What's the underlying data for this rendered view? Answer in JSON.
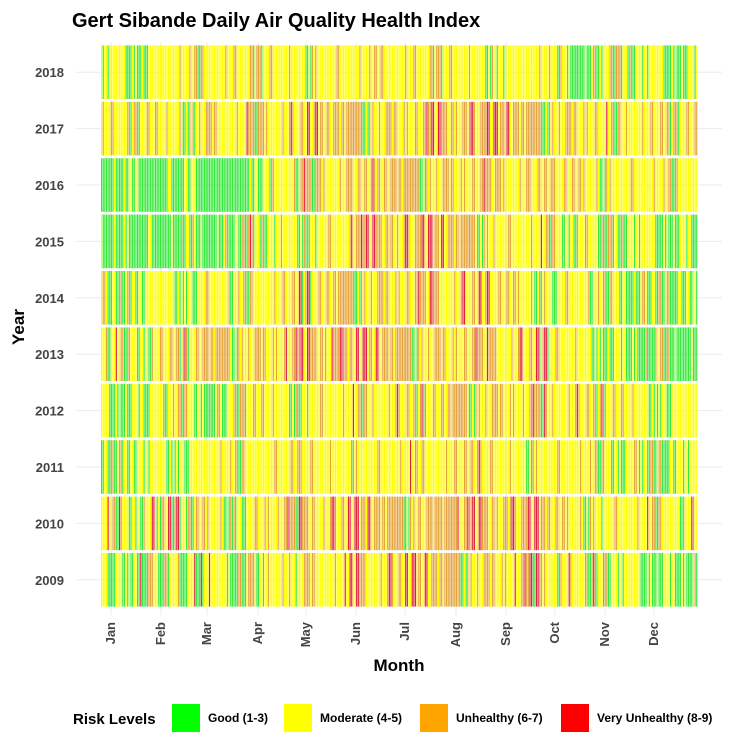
{
  "chart_data": {
    "type": "heatmap",
    "title": "Gert Sibande Daily Air Quality Health Index",
    "xlabel": "Month",
    "ylabel": "Year",
    "x_ticks": [
      "Jan",
      "Feb",
      "Mar",
      "Apr",
      "May",
      "Jun",
      "Jul",
      "Aug",
      "Sep",
      "Oct",
      "Nov",
      "Dec"
    ],
    "years": [
      "2009",
      "2010",
      "2011",
      "2012",
      "2013",
      "2014",
      "2015",
      "2016",
      "2017",
      "2018"
    ],
    "legend": {
      "title": "Risk Levels",
      "placement": "bottom",
      "levels": [
        {
          "label": "Good (1-3)",
          "color": "#00ff00"
        },
        {
          "label": "Moderate (4-5)",
          "color": "#ffff00"
        },
        {
          "label": "Unhealthy (6-7)",
          "color": "#ffa500"
        },
        {
          "label": "Very Unhealthy (8-9)",
          "color": "#ff0000"
        }
      ]
    },
    "bar_colors": [
      "#36e83c",
      "#ffff00",
      "#e6a33a",
      "#e0203c"
    ],
    "daily_category_profile": {
      "2009": [
        [
          0,
          1,
          0.55,
          0.3,
          0.1,
          0.05
        ],
        [
          1,
          2,
          0.5,
          0.35,
          0.12,
          0.03
        ],
        [
          2,
          3,
          0.4,
          0.4,
          0.17,
          0.03
        ],
        [
          3,
          4,
          0.25,
          0.5,
          0.22,
          0.03
        ],
        [
          4,
          5,
          0.12,
          0.5,
          0.33,
          0.05
        ],
        [
          5,
          6,
          0.05,
          0.45,
          0.4,
          0.1
        ],
        [
          6,
          7,
          0.05,
          0.45,
          0.4,
          0.1
        ],
        [
          7,
          8,
          0.05,
          0.45,
          0.42,
          0.08
        ],
        [
          8,
          9,
          0.08,
          0.45,
          0.37,
          0.1
        ],
        [
          9,
          10,
          0.25,
          0.5,
          0.22,
          0.03
        ],
        [
          10,
          11,
          0.4,
          0.45,
          0.13,
          0.02
        ],
        [
          11,
          12,
          0.5,
          0.4,
          0.08,
          0.02
        ]
      ],
      "2010": [
        [
          0,
          1,
          0.3,
          0.4,
          0.25,
          0.05
        ],
        [
          1,
          2,
          0.35,
          0.35,
          0.25,
          0.05
        ],
        [
          2,
          3,
          0.3,
          0.35,
          0.3,
          0.05
        ],
        [
          3,
          4,
          0.15,
          0.4,
          0.38,
          0.07
        ],
        [
          4,
          5,
          0.05,
          0.4,
          0.45,
          0.1
        ],
        [
          5,
          6,
          0.05,
          0.35,
          0.48,
          0.12
        ],
        [
          6,
          7,
          0.03,
          0.35,
          0.5,
          0.12
        ],
        [
          7,
          8,
          0.03,
          0.35,
          0.45,
          0.17
        ],
        [
          8,
          9,
          0.03,
          0.35,
          0.45,
          0.17
        ],
        [
          9,
          10,
          0.1,
          0.55,
          0.3,
          0.05
        ],
        [
          10,
          11,
          0.15,
          0.55,
          0.27,
          0.03
        ],
        [
          11,
          12,
          0.2,
          0.55,
          0.22,
          0.03
        ]
      ],
      "2011": [
        [
          0,
          1,
          0.45,
          0.5,
          0.05,
          0
        ],
        [
          1,
          2,
          0.3,
          0.6,
          0.1,
          0
        ],
        [
          2,
          3,
          0.2,
          0.65,
          0.15,
          0
        ],
        [
          3,
          4,
          0.05,
          0.8,
          0.15,
          0
        ],
        [
          4,
          5,
          0.02,
          0.8,
          0.18,
          0
        ],
        [
          5,
          6,
          0.02,
          0.75,
          0.23,
          0
        ],
        [
          6,
          7,
          0.02,
          0.72,
          0.25,
          0.01
        ],
        [
          7,
          8,
          0.02,
          0.7,
          0.27,
          0.01
        ],
        [
          8,
          9,
          0.05,
          0.72,
          0.22,
          0.01
        ],
        [
          9,
          10,
          0.12,
          0.7,
          0.18,
          0
        ],
        [
          10,
          11,
          0.35,
          0.55,
          0.1,
          0
        ],
        [
          11,
          12,
          0.55,
          0.4,
          0.05,
          0
        ]
      ],
      "2012": [
        [
          0,
          1,
          0.45,
          0.45,
          0.1,
          0
        ],
        [
          1,
          2,
          0.3,
          0.5,
          0.2,
          0
        ],
        [
          2,
          3,
          0.4,
          0.4,
          0.2,
          0
        ],
        [
          3,
          4,
          0.3,
          0.45,
          0.25,
          0
        ],
        [
          4,
          5,
          0.2,
          0.45,
          0.33,
          0.02
        ],
        [
          5,
          6,
          0.12,
          0.5,
          0.35,
          0.03
        ],
        [
          6,
          7,
          0.1,
          0.5,
          0.37,
          0.03
        ],
        [
          7,
          8,
          0.05,
          0.5,
          0.4,
          0.05
        ],
        [
          8,
          9,
          0.08,
          0.45,
          0.4,
          0.07
        ],
        [
          9,
          10,
          0.1,
          0.55,
          0.32,
          0.03
        ],
        [
          10,
          11,
          0.2,
          0.55,
          0.23,
          0.02
        ],
        [
          11,
          12,
          0.3,
          0.55,
          0.15,
          0
        ]
      ],
      "2013": [
        [
          0,
          1,
          0.3,
          0.5,
          0.18,
          0.02
        ],
        [
          1,
          2,
          0.2,
          0.5,
          0.28,
          0.02
        ],
        [
          2,
          3,
          0.1,
          0.45,
          0.38,
          0.07
        ],
        [
          3,
          4,
          0.05,
          0.35,
          0.45,
          0.15
        ],
        [
          4,
          5,
          0.02,
          0.3,
          0.48,
          0.2
        ],
        [
          5,
          6,
          0.05,
          0.4,
          0.45,
          0.1
        ],
        [
          6,
          7,
          0.05,
          0.45,
          0.42,
          0.08
        ],
        [
          7,
          8,
          0.03,
          0.45,
          0.45,
          0.07
        ],
        [
          8,
          9,
          0.08,
          0.5,
          0.37,
          0.05
        ],
        [
          9,
          10,
          0.3,
          0.5,
          0.18,
          0.02
        ],
        [
          10,
          11,
          0.55,
          0.35,
          0.1,
          0
        ],
        [
          11,
          12,
          0.6,
          0.3,
          0.1,
          0
        ]
      ],
      "2014": [
        [
          0,
          1,
          0.45,
          0.5,
          0.05,
          0
        ],
        [
          1,
          2,
          0.3,
          0.55,
          0.15,
          0
        ],
        [
          2,
          3,
          0.25,
          0.55,
          0.2,
          0
        ],
        [
          3,
          4,
          0.15,
          0.55,
          0.28,
          0.02
        ],
        [
          4,
          5,
          0.1,
          0.5,
          0.35,
          0.05
        ],
        [
          5,
          6,
          0.05,
          0.45,
          0.42,
          0.08
        ],
        [
          6,
          7,
          0.05,
          0.45,
          0.42,
          0.08
        ],
        [
          7,
          8,
          0.05,
          0.5,
          0.4,
          0.05
        ],
        [
          8,
          9,
          0.1,
          0.55,
          0.32,
          0.03
        ],
        [
          9,
          10,
          0.25,
          0.55,
          0.18,
          0.02
        ],
        [
          10,
          11,
          0.45,
          0.45,
          0.1,
          0
        ],
        [
          11,
          12,
          0.6,
          0.35,
          0.05,
          0
        ]
      ],
      "2015": [
        [
          0,
          1,
          0.65,
          0.3,
          0.05,
          0
        ],
        [
          1,
          2,
          0.65,
          0.3,
          0.05,
          0
        ],
        [
          2,
          3,
          0.6,
          0.3,
          0.1,
          0
        ],
        [
          3,
          4,
          0.35,
          0.45,
          0.18,
          0.02
        ],
        [
          4,
          5,
          0.2,
          0.45,
          0.32,
          0.03
        ],
        [
          5,
          6,
          0.05,
          0.25,
          0.4,
          0.3
        ],
        [
          6,
          7,
          0.05,
          0.35,
          0.45,
          0.15
        ],
        [
          7,
          8,
          0.08,
          0.45,
          0.4,
          0.07
        ],
        [
          8,
          9,
          0.15,
          0.5,
          0.32,
          0.03
        ],
        [
          9,
          10,
          0.3,
          0.5,
          0.2,
          0
        ],
        [
          10,
          11,
          0.5,
          0.4,
          0.1,
          0
        ],
        [
          11,
          12,
          0.55,
          0.4,
          0.05,
          0
        ]
      ],
      "2016": [
        [
          0,
          1,
          0.9,
          0.1,
          0,
          0
        ],
        [
          1,
          2,
          0.92,
          0.08,
          0,
          0
        ],
        [
          2,
          3,
          0.92,
          0.08,
          0,
          0
        ],
        [
          3,
          4,
          0.35,
          0.45,
          0.2,
          0
        ],
        [
          4,
          5,
          0.08,
          0.45,
          0.45,
          0.02
        ],
        [
          5,
          6,
          0.03,
          0.42,
          0.53,
          0.02
        ],
        [
          6,
          7,
          0.03,
          0.42,
          0.53,
          0.02
        ],
        [
          7,
          8,
          0.05,
          0.45,
          0.48,
          0.02
        ],
        [
          8,
          9,
          0.08,
          0.5,
          0.41,
          0.01
        ],
        [
          9,
          10,
          0.05,
          0.6,
          0.35,
          0
        ],
        [
          10,
          11,
          0.08,
          0.65,
          0.27,
          0
        ],
        [
          11,
          12,
          0.12,
          0.65,
          0.23,
          0
        ]
      ],
      "2017": [
        [
          0,
          1,
          0.2,
          0.55,
          0.25,
          0
        ],
        [
          1,
          2,
          0.15,
          0.55,
          0.3,
          0
        ],
        [
          2,
          3,
          0.12,
          0.5,
          0.36,
          0.02
        ],
        [
          3,
          4,
          0.08,
          0.45,
          0.44,
          0.03
        ],
        [
          4,
          5,
          0.05,
          0.4,
          0.5,
          0.05
        ],
        [
          5,
          6,
          0.03,
          0.4,
          0.5,
          0.07
        ],
        [
          6,
          7,
          0.03,
          0.38,
          0.5,
          0.09
        ],
        [
          7,
          8,
          0.02,
          0.35,
          0.5,
          0.13
        ],
        [
          8,
          9,
          0.03,
          0.35,
          0.48,
          0.14
        ],
        [
          9,
          10,
          0.05,
          0.45,
          0.45,
          0.05
        ],
        [
          10,
          11,
          0.08,
          0.55,
          0.35,
          0.02
        ],
        [
          11,
          12,
          0.1,
          0.6,
          0.3,
          0
        ]
      ],
      "2018": [
        [
          0,
          1,
          0.45,
          0.5,
          0.05,
          0
        ],
        [
          1,
          2,
          0.15,
          0.75,
          0.1,
          0
        ],
        [
          2,
          3,
          0.1,
          0.7,
          0.2,
          0
        ],
        [
          3,
          4,
          0.08,
          0.7,
          0.22,
          0
        ],
        [
          4,
          5,
          0.05,
          0.7,
          0.25,
          0
        ],
        [
          5,
          6,
          0.05,
          0.7,
          0.25,
          0
        ],
        [
          6,
          7,
          0.08,
          0.68,
          0.24,
          0
        ],
        [
          7,
          8,
          0.15,
          0.65,
          0.2,
          0
        ],
        [
          8,
          9,
          0.2,
          0.65,
          0.15,
          0
        ],
        [
          9,
          10,
          0.55,
          0.4,
          0.05,
          0
        ],
        [
          10,
          11,
          0.35,
          0.55,
          0.1,
          0
        ],
        [
          11,
          12,
          0.55,
          0.42,
          0.03,
          0
        ]
      ]
    }
  }
}
